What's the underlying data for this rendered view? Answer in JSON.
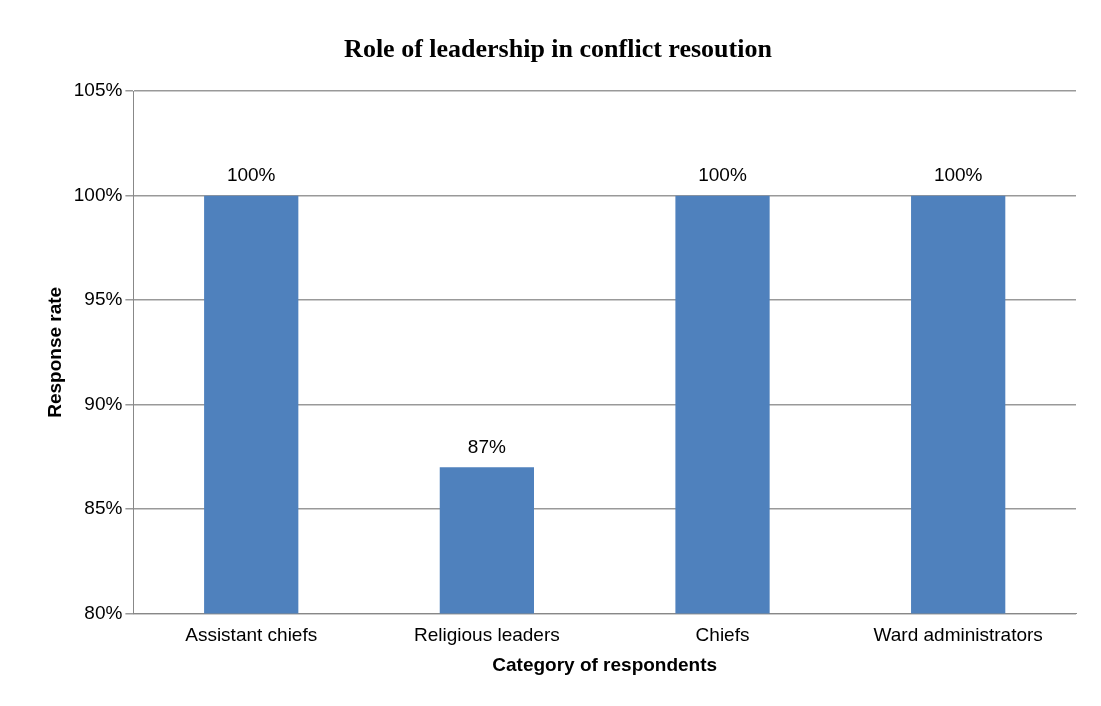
{
  "chart_data": {
    "type": "bar",
    "title": "Role of leadership in conflict resoution",
    "xlabel": "Category of respondents",
    "ylabel": "Response rate",
    "categories": [
      "Assistant chiefs",
      "Religious leaders",
      "Chiefs",
      "Ward administrators"
    ],
    "values": [
      100,
      87,
      100,
      100
    ],
    "color": "#4f81bd",
    "value_labels": [
      "100%",
      "87%",
      "100%",
      "100%"
    ],
    "ylim": [
      80,
      105
    ],
    "yticks": [
      {
        "value": 80,
        "label": "80%"
      },
      {
        "value": 85,
        "label": "85%"
      },
      {
        "value": 90,
        "label": "90%"
      },
      {
        "value": 95,
        "label": "95%"
      },
      {
        "value": 100,
        "label": "100%"
      },
      {
        "value": 105,
        "label": "105%"
      }
    ],
    "grid": "y",
    "legend": false
  }
}
